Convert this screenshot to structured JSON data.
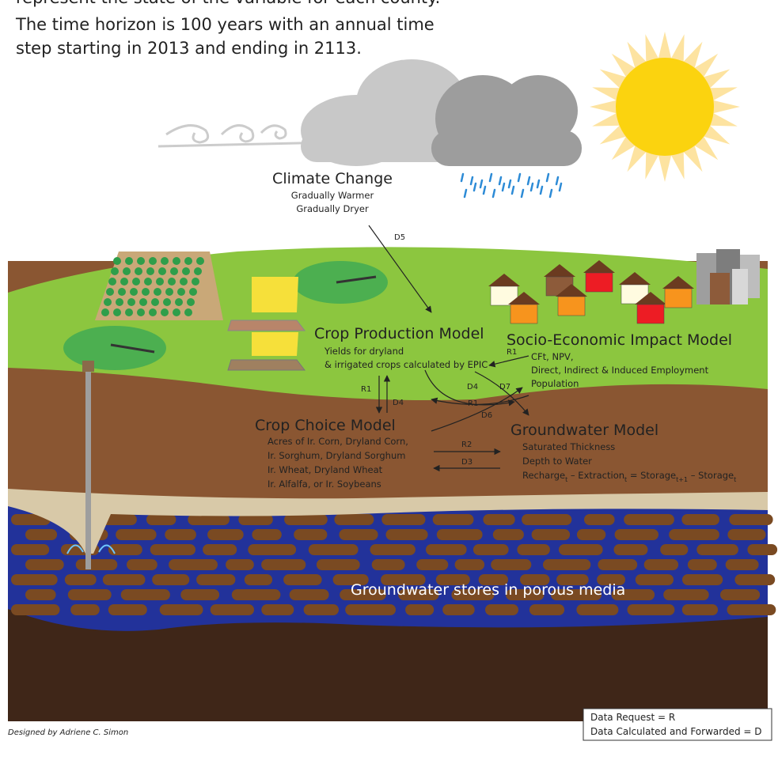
{
  "intro": {
    "lines": [
      "represent the state of the variable for each county.",
      "The time horizon is 100 years with an annual time",
      "step starting in 2013 and ending in 2113."
    ]
  },
  "climate": {
    "title": "Climate Change",
    "lines": [
      "Gradually Warmer",
      "Gradually Dryer"
    ]
  },
  "flows": {
    "d5": "D5",
    "r1_vertical": "R1",
    "d4_vertical": "D4",
    "d4_cross": "D4",
    "d7": "D7",
    "r1_cross": "R1",
    "d6": "D6",
    "r2": "R2",
    "d3": "D3"
  },
  "crop_production": {
    "title": "Crop Production Model",
    "lines": [
      "Yields for dryland",
      "& irrigated crops calculated by EPIC"
    ]
  },
  "socio_economic": {
    "title": "Socio-Economic Impact Model",
    "lines": [
      "CFt, NPV,",
      "Direct, Indirect & Induced Employment",
      "Population"
    ]
  },
  "crop_choice": {
    "title": "Crop Choice Model",
    "lines": [
      "Acres of Ir. Corn, Dryland Corn,",
      "Ir. Sorghum, Dryland Sorghum",
      "Ir. Wheat, Dryland Wheat",
      "Ir. Alfalfa, or Ir. Soybeans"
    ]
  },
  "groundwater": {
    "title": "Groundwater Model",
    "lines": [
      "Saturated Thickness",
      "Depth to Water"
    ],
    "equation": [
      "Recharge",
      "t",
      " – Extraction",
      "t",
      " = Storage",
      "t+1",
      " – Storage",
      "t"
    ]
  },
  "aquifer_label": "Groundwater stores in porous media",
  "credit": "Designed by Adriene C. Simon",
  "legend": {
    "items": [
      "Data Request = R",
      "Data Calculated and Forwarded = D"
    ]
  }
}
